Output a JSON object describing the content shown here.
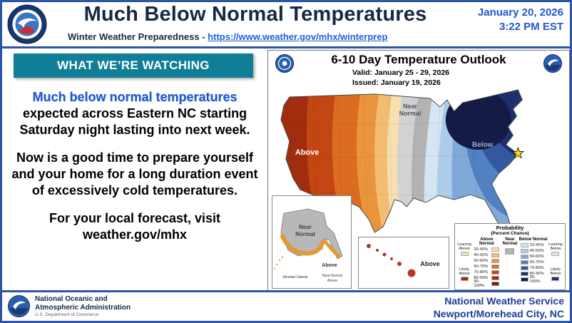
{
  "header": {
    "title": "Much Below Normal Temperatures",
    "date_line": "January 20, 2026",
    "time_line": "3:22 PM EST",
    "subtitle_label": "Winter Weather Preparedness -",
    "subtitle_link": "https://www.weather.gov/mhx/winterprep"
  },
  "watching": {
    "header": "WHAT WE’RE WATCHING"
  },
  "body_text": {
    "p1_highlight": "Much below normal temperatures",
    "p1_rest": "expected across Eastern NC starting Saturday night lasting into next week.",
    "p2": "Now is a good time to prepare yourself and your home for a long duration event of excessively cold temperatures.",
    "p3_line1": "For your local forecast, visit",
    "p3_line2": "weather.gov/mhx"
  },
  "map": {
    "title": "6-10 Day Temperature Outlook",
    "valid_label": "Valid:",
    "valid_value": "January 25 - 29, 2026",
    "issued_label": "Issued:",
    "issued_value": "January 19, 2026",
    "conus_labels": {
      "above": "Above",
      "near_1": "Near",
      "near_2": "Normal",
      "below": "Below"
    },
    "alaska": {
      "near_1": "Near",
      "near_2": "Normal",
      "above": "Above",
      "aleutian": "Aleutian Islands",
      "mini_near": "Near Normal",
      "mini_above": "Above"
    },
    "hawaii": {
      "above": "Above"
    },
    "colors": {
      "near_light": "#d2d2d2",
      "near_dark": "#b3b3b3",
      "star": "#ffd21f"
    },
    "legend": {
      "title_1": "Probability",
      "title_2": "(Percent Chance)",
      "above_header": "Above Normal",
      "near_header_1": "Near",
      "near_header_2": "Normal",
      "below_header": "Below Normal",
      "leaning_above": "Leaning Above",
      "likely_above": "Likely Above",
      "leaning_below": "Leaning Below",
      "likely_below": "Likely Below",
      "near_color": "#b3b3b3",
      "above_rows": [
        {
          "pct": "33-40%",
          "color": "#f7e0b0"
        },
        {
          "pct": "40-50%",
          "color": "#f2bd72"
        },
        {
          "pct": "50-60%",
          "color": "#ea953c"
        },
        {
          "pct": "60-70%",
          "color": "#db6c20"
        },
        {
          "pct": "70-80%",
          "color": "#c44613"
        },
        {
          "pct": "80-90%",
          "color": "#a22c0e"
        },
        {
          "pct": "90-100%",
          "color": "#7a1c07"
        }
      ],
      "below_rows": [
        {
          "pct": "33-40%",
          "color": "#d5e5f4"
        },
        {
          "pct": "40-50%",
          "color": "#accce9"
        },
        {
          "pct": "50-60%",
          "color": "#7fa9d9"
        },
        {
          "pct": "60-70%",
          "color": "#5180c3"
        },
        {
          "pct": "70-80%",
          "color": "#3458a0"
        },
        {
          "pct": "80-90%",
          "color": "#1e2f6e"
        },
        {
          "pct": "90-100%",
          "color": "#141b47"
        }
      ]
    }
  },
  "footer": {
    "noaa_line1": "National Oceanic and",
    "noaa_line2": "Atmospheric Administration",
    "noaa_line3": "U.S. Department of Commerce",
    "nws_line1": "National Weather Service",
    "nws_line2": "Newport/Morehead City, NC"
  }
}
